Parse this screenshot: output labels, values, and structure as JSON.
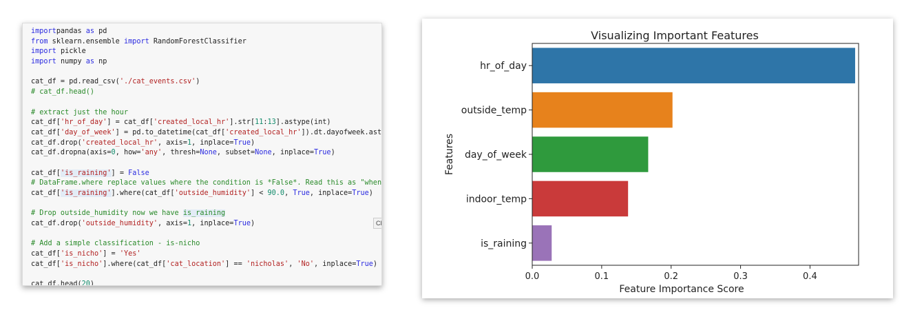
{
  "code_cell": {
    "lines": [
      [
        [
          "kw",
          "import"
        ],
        [
          "",
          "pandas "
        ],
        [
          "kw",
          "as"
        ],
        [
          "",
          " pd"
        ]
      ],
      [
        [
          "kw",
          "from"
        ],
        [
          "",
          " sklearn.ensemble "
        ],
        [
          "kw",
          "import"
        ],
        [
          "",
          " RandomForestClassifier"
        ]
      ],
      [
        [
          "kw",
          "import"
        ],
        [
          "",
          " pickle"
        ]
      ],
      [
        [
          "kw",
          "import"
        ],
        [
          "",
          " numpy "
        ],
        [
          "kw",
          "as"
        ],
        [
          "",
          " np"
        ]
      ],
      [],
      [
        [
          "",
          "cat_df = pd.read_csv("
        ],
        [
          "st",
          "'./cat_events.csv'"
        ],
        [
          "",
          ")"
        ]
      ],
      [
        [
          "cm",
          "# cat_df.head()"
        ]
      ],
      [],
      [
        [
          "cm",
          "# extract just the hour"
        ]
      ],
      [
        [
          "",
          "cat_df["
        ],
        [
          "st",
          "'hr_of_day'"
        ],
        [
          "",
          "] = cat_df["
        ],
        [
          "st",
          "'created_local_hr'"
        ],
        [
          "",
          "].str["
        ],
        [
          "nm",
          "11"
        ],
        [
          "",
          ":"
        ],
        [
          "nm",
          "13"
        ],
        [
          "",
          "].astype(int)"
        ]
      ],
      [
        [
          "",
          "cat_df["
        ],
        [
          "st",
          "'day_of_week'"
        ],
        [
          "",
          "] = pd.to_datetime(cat_df["
        ],
        [
          "st",
          "'created_local_hr'"
        ],
        [
          "",
          "]).dt.dayofweek.astype("
        ]
      ],
      [
        [
          "",
          "cat_df.drop("
        ],
        [
          "st",
          "'created_local_hr'"
        ],
        [
          "",
          ", axis="
        ],
        [
          "nm",
          "1"
        ],
        [
          "",
          ", inplace="
        ],
        [
          "kw",
          "True"
        ],
        [
          "",
          ")"
        ]
      ],
      [
        [
          "",
          "cat_df.dropna(axis="
        ],
        [
          "nm",
          "0"
        ],
        [
          "",
          ", how="
        ],
        [
          "st",
          "'any'"
        ],
        [
          "",
          ", thresh="
        ],
        [
          "kw",
          "None"
        ],
        [
          "",
          ", subset="
        ],
        [
          "kw",
          "None"
        ],
        [
          "",
          ", inplace="
        ],
        [
          "kw",
          "True"
        ],
        [
          "",
          ")"
        ]
      ],
      [],
      [
        [
          "",
          "cat_df["
        ],
        [
          "st hl",
          "'is_raining'"
        ],
        [
          "",
          "] = "
        ],
        [
          "kw",
          "False"
        ]
      ],
      [
        [
          "cm",
          "# DataFrame.where replace values where the condition is *False*. Read this as \"when out"
        ]
      ],
      [
        [
          "",
          "cat_df["
        ],
        [
          "st hl",
          "'is_raining'"
        ],
        [
          "",
          "].where(cat_df["
        ],
        [
          "st",
          "'outside_humidity'"
        ],
        [
          "",
          "] < "
        ],
        [
          "nm",
          "90.0"
        ],
        [
          "",
          ", "
        ],
        [
          "kw",
          "True"
        ],
        [
          "",
          ", inplace="
        ],
        [
          "kw",
          "True"
        ],
        [
          "",
          ")"
        ]
      ],
      [],
      [
        [
          "cm",
          "# Drop outside_humidity now we have "
        ],
        [
          "cm hl",
          "is_raining"
        ]
      ],
      [
        [
          "",
          "cat_df.drop("
        ],
        [
          "st",
          "'outside_humidity'"
        ],
        [
          "",
          ", axis="
        ],
        [
          "nm",
          "1"
        ],
        [
          "",
          ", inplace="
        ],
        [
          "kw",
          "True"
        ],
        [
          "",
          ")"
        ]
      ],
      [],
      [
        [
          "cm",
          "# Add a simple classification - is-nicho"
        ]
      ],
      [
        [
          "",
          "cat_df["
        ],
        [
          "st",
          "'is_nicho'"
        ],
        [
          "",
          "] = "
        ],
        [
          "st",
          "'Yes'"
        ]
      ],
      [
        [
          "",
          "cat_df["
        ],
        [
          "st",
          "'is_nicho'"
        ],
        [
          "",
          "].where(cat_df["
        ],
        [
          "st",
          "'cat_location'"
        ],
        [
          "",
          "] == "
        ],
        [
          "st",
          "'nicholas'"
        ],
        [
          "",
          ", "
        ],
        [
          "st",
          "'No'"
        ],
        [
          "",
          ", inplace="
        ],
        [
          "kw",
          "True"
        ],
        [
          "",
          ")"
        ]
      ],
      [],
      [
        [
          "",
          "cat_df.head("
        ],
        [
          "nm",
          "20"
        ],
        [
          "",
          ")"
        ]
      ]
    ],
    "tooltip": "Clear Out"
  },
  "chart_data": {
    "type": "bar",
    "orientation": "horizontal",
    "title": "Visualizing Important Features",
    "xlabel": "Feature Importance Score",
    "ylabel": "Features",
    "categories": [
      "hr_of_day",
      "outside_temp",
      "day_of_week",
      "indoor_temp",
      "is_raining"
    ],
    "values": [
      0.465,
      0.202,
      0.167,
      0.138,
      0.028
    ],
    "colors": [
      "#2e75a8",
      "#e7821c",
      "#2f9a3d",
      "#c93a3a",
      "#9a73b8"
    ],
    "xlim": [
      0,
      0.47
    ],
    "xticks": [
      "0.0",
      "0.1",
      "0.2",
      "0.3",
      "0.4"
    ],
    "grid": false
  }
}
